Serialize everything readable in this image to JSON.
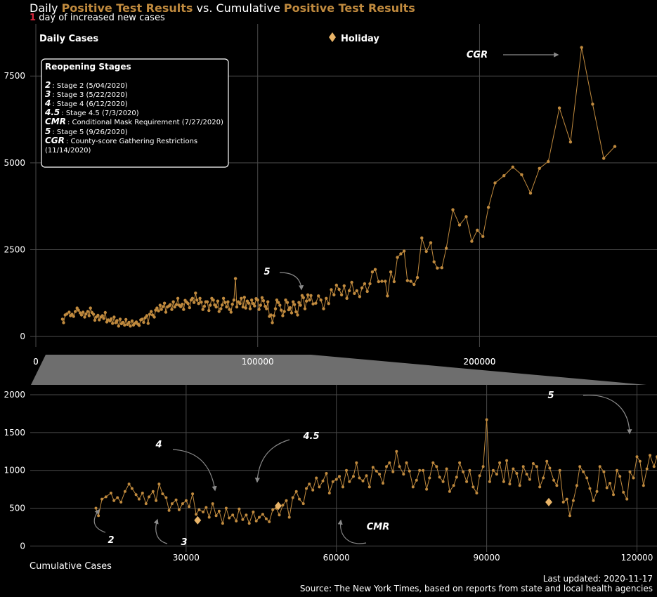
{
  "title": {
    "prefix": "Daily",
    "highlight1": "Positive Test Results",
    "middle": "vs. Cumulative",
    "highlight2": "Positive Test Results"
  },
  "subtitle": {
    "number": "1",
    "text": "day of increased new cases"
  },
  "x_caption": "Cumulative Cases",
  "footer": {
    "updated": "Last updated: 2020-11-17",
    "source": "Source: The New York Times, based on reports from state and local health agencies"
  },
  "colors": {
    "line": "#c08a3e",
    "highlight": "#c08a3e",
    "alert": "#d7263d",
    "holiday": "#e9b468",
    "grid": "#4a4a4a",
    "zoom_band": "#6e6e6e"
  },
  "legend": {
    "daily_cases": "Daily Cases",
    "holiday": "Holiday",
    "holiday_icon": "diamond-icon"
  },
  "stages_box": {
    "title": "Reopening Stages",
    "items": [
      {
        "code": "2",
        "text": ": Stage 2 (5/04/2020)"
      },
      {
        "code": "3",
        "text": ": Stage 3 (5/22/2020)"
      },
      {
        "code": "4",
        "text": ": Stage 4 (6/12/2020)"
      },
      {
        "code": "4.5",
        "text": ": Stage 4.5 (7/3/2020)"
      },
      {
        "code": "CMR",
        "text": ": Conditional Mask Requirement (7/27/2020)"
      },
      {
        "code": "5",
        "text": ": Stage 5 (9/26/2020)"
      },
      {
        "code": "CGR",
        "text": ": County-score Gathering Restrictions"
      },
      {
        "code": "",
        "text": "(11/14/2020)"
      }
    ]
  },
  "chart_data": [
    {
      "type": "line",
      "panel": "overview",
      "xlabel": "",
      "ylabel": "",
      "xlim": [
        0,
        280000
      ],
      "ylim": [
        -300,
        9000
      ],
      "x_ticks": [
        0,
        100000,
        200000
      ],
      "x_tick_labels": [
        "0",
        "100000",
        "200000"
      ],
      "y_ticks": [
        0,
        2500,
        5000,
        7500
      ],
      "y_tick_labels": [
        "0",
        "2500",
        "5000",
        "7500"
      ],
      "grid": true,
      "zoom_range": [
        0,
        124000
      ],
      "annotations": [
        {
          "label": "5",
          "x": 107000,
          "y": 1700
        },
        {
          "label": "CGR",
          "x": 208000,
          "y": 8400
        }
      ],
      "points": [
        [
          12000,
          500
        ],
        [
          12500,
          400
        ],
        [
          13200,
          620
        ],
        [
          14000,
          650
        ],
        [
          15000,
          700
        ],
        [
          15600,
          600
        ],
        [
          16300,
          640
        ],
        [
          17000,
          580
        ],
        [
          17800,
          720
        ],
        [
          18600,
          820
        ],
        [
          19200,
          760
        ],
        [
          20000,
          680
        ],
        [
          20600,
          620
        ],
        [
          21300,
          700
        ],
        [
          22000,
          560
        ],
        [
          22600,
          650
        ],
        [
          23400,
          720
        ],
        [
          24000,
          600
        ],
        [
          24600,
          820
        ],
        [
          25300,
          690
        ],
        [
          26000,
          640
        ],
        [
          26600,
          470
        ],
        [
          27200,
          560
        ],
        [
          28000,
          610
        ],
        [
          28600,
          480
        ],
        [
          29300,
          560
        ],
        [
          30000,
          600
        ],
        [
          30600,
          520
        ],
        [
          31300,
          690
        ],
        [
          32000,
          420
        ],
        [
          32600,
          480
        ],
        [
          33400,
          450
        ],
        [
          34000,
          510
        ],
        [
          34600,
          380
        ],
        [
          35300,
          560
        ],
        [
          36000,
          400
        ],
        [
          36600,
          460
        ],
        [
          37300,
          300
        ],
        [
          38000,
          500
        ],
        [
          38600,
          370
        ],
        [
          39300,
          410
        ],
        [
          40000,
          330
        ],
        [
          40600,
          490
        ],
        [
          41300,
          350
        ],
        [
          42000,
          410
        ],
        [
          42600,
          300
        ],
        [
          43400,
          450
        ],
        [
          44000,
          330
        ],
        [
          44600,
          380
        ],
        [
          45300,
          420
        ],
        [
          46000,
          360
        ],
        [
          46600,
          320
        ],
        [
          47300,
          480
        ],
        [
          48000,
          500
        ],
        [
          48600,
          410
        ],
        [
          49300,
          540
        ],
        [
          50000,
          600
        ],
        [
          50600,
          380
        ],
        [
          51300,
          640
        ],
        [
          52000,
          720
        ],
        [
          52600,
          620
        ],
        [
          53400,
          560
        ],
        [
          54000,
          760
        ],
        [
          54600,
          820
        ],
        [
          55300,
          740
        ],
        [
          56000,
          900
        ],
        [
          56600,
          780
        ],
        [
          57300,
          860
        ],
        [
          58000,
          960
        ],
        [
          58600,
          700
        ],
        [
          59300,
          850
        ],
        [
          60000,
          880
        ],
        [
          60600,
          920
        ],
        [
          61300,
          780
        ],
        [
          62000,
          1000
        ],
        [
          62600,
          850
        ],
        [
          63400,
          920
        ],
        [
          64000,
          1100
        ],
        [
          64600,
          900
        ],
        [
          65300,
          860
        ],
        [
          66000,
          930
        ],
        [
          66600,
          780
        ],
        [
          67300,
          1040
        ],
        [
          68000,
          990
        ],
        [
          68600,
          950
        ],
        [
          69300,
          830
        ],
        [
          70000,
          1050
        ],
        [
          70600,
          1100
        ],
        [
          71300,
          980
        ],
        [
          72000,
          1250
        ],
        [
          72600,
          1050
        ],
        [
          73400,
          950
        ],
        [
          74000,
          1100
        ],
        [
          74600,
          990
        ],
        [
          75300,
          780
        ],
        [
          76000,
          870
        ],
        [
          76600,
          1000
        ],
        [
          77300,
          1000
        ],
        [
          78000,
          750
        ],
        [
          78600,
          900
        ],
        [
          79300,
          1100
        ],
        [
          80000,
          1050
        ],
        [
          80600,
          910
        ],
        [
          81300,
          850
        ],
        [
          82000,
          1020
        ],
        [
          82600,
          720
        ],
        [
          83400,
          800
        ],
        [
          84000,
          910
        ],
        [
          84600,
          1100
        ],
        [
          85300,
          980
        ],
        [
          86000,
          850
        ],
        [
          86600,
          1000
        ],
        [
          87300,
          780
        ],
        [
          88000,
          700
        ],
        [
          88600,
          930
        ],
        [
          89300,
          1050
        ],
        [
          90000,
          1670
        ],
        [
          90600,
          850
        ],
        [
          91300,
          1000
        ],
        [
          92000,
          950
        ],
        [
          92600,
          1100
        ],
        [
          93400,
          850
        ],
        [
          94000,
          1130
        ],
        [
          94600,
          820
        ],
        [
          95300,
          1020
        ],
        [
          96000,
          960
        ],
        [
          96600,
          800
        ],
        [
          97300,
          1050
        ],
        [
          98000,
          950
        ],
        [
          98600,
          880
        ],
        [
          99300,
          1090
        ],
        [
          100000,
          1050
        ],
        [
          100600,
          780
        ],
        [
          101300,
          900
        ],
        [
          102000,
          1120
        ],
        [
          102600,
          1030
        ],
        [
          103400,
          870
        ],
        [
          104000,
          800
        ],
        [
          104600,
          1000
        ],
        [
          105300,
          580
        ],
        [
          106000,
          620
        ],
        [
          106600,
          400
        ],
        [
          107300,
          600
        ],
        [
          108000,
          800
        ],
        [
          108600,
          1050
        ],
        [
          109300,
          980
        ],
        [
          110000,
          900
        ],
        [
          110600,
          760
        ],
        [
          111300,
          600
        ],
        [
          112000,
          720
        ],
        [
          112600,
          1050
        ],
        [
          113400,
          980
        ],
        [
          114000,
          770
        ],
        [
          114600,
          830
        ],
        [
          115300,
          680
        ],
        [
          116000,
          1000
        ],
        [
          116600,
          920
        ],
        [
          117300,
          710
        ],
        [
          118000,
          620
        ],
        [
          118600,
          980
        ],
        [
          119300,
          900
        ],
        [
          120000,
          1180
        ],
        [
          120600,
          1120
        ],
        [
          121300,
          800
        ],
        [
          122000,
          1020
        ],
        [
          122600,
          1200
        ],
        [
          123400,
          1050
        ],
        [
          124000,
          1180
        ],
        [
          125000,
          940
        ],
        [
          126200,
          960
        ],
        [
          127400,
          1170
        ],
        [
          128500,
          1050
        ],
        [
          129700,
          800
        ],
        [
          130900,
          1100
        ],
        [
          132000,
          950
        ],
        [
          133200,
          1350
        ],
        [
          134400,
          1200
        ],
        [
          135500,
          1480
        ],
        [
          136700,
          1360
        ],
        [
          137800,
          1200
        ],
        [
          139000,
          1460
        ],
        [
          140200,
          1100
        ],
        [
          141300,
          1320
        ],
        [
          142400,
          1560
        ],
        [
          143600,
          1240
        ],
        [
          144700,
          1320
        ],
        [
          146000,
          1150
        ],
        [
          147000,
          1400
        ],
        [
          148200,
          1520
        ],
        [
          149400,
          1300
        ],
        [
          150600,
          1520
        ],
        [
          151700,
          1860
        ],
        [
          153000,
          1930
        ],
        [
          154500,
          1580
        ],
        [
          156000,
          1590
        ],
        [
          157500,
          1590
        ],
        [
          158500,
          1170
        ],
        [
          160000,
          1860
        ],
        [
          161500,
          1580
        ],
        [
          163000,
          2280
        ],
        [
          164500,
          2380
        ],
        [
          166000,
          2460
        ],
        [
          167500,
          1610
        ],
        [
          169000,
          1590
        ],
        [
          170500,
          1500
        ],
        [
          172000,
          1700
        ],
        [
          174000,
          2840
        ],
        [
          176000,
          2450
        ],
        [
          178000,
          2700
        ],
        [
          179500,
          2150
        ],
        [
          181000,
          1970
        ],
        [
          183000,
          1980
        ],
        [
          185000,
          2540
        ],
        [
          188000,
          3650
        ],
        [
          191000,
          3210
        ],
        [
          194000,
          3450
        ],
        [
          196500,
          2740
        ],
        [
          199000,
          3060
        ],
        [
          201500,
          2880
        ],
        [
          204000,
          3720
        ],
        [
          207000,
          4420
        ],
        [
          211000,
          4630
        ],
        [
          215000,
          4880
        ],
        [
          219000,
          4660
        ],
        [
          223000,
          4130
        ],
        [
          227000,
          4840
        ],
        [
          231000,
          5040
        ],
        [
          236000,
          6580
        ],
        [
          241000,
          5600
        ],
        [
          246000,
          8320
        ],
        [
          251000,
          6690
        ],
        [
          256000,
          5130
        ],
        [
          261000,
          5470
        ]
      ]
    },
    {
      "type": "line",
      "panel": "zoom",
      "xlabel": "Cumulative Cases",
      "ylabel": "",
      "xlim": [
        0,
        124000
      ],
      "ylim": [
        -80,
        2130
      ],
      "x_ticks": [
        30000,
        60000,
        90000,
        120000
      ],
      "x_tick_labels": [
        "30000",
        "60000",
        "90000",
        "120000"
      ],
      "y_ticks": [
        0,
        500,
        1000,
        1500,
        2000
      ],
      "y_tick_labels": [
        "0",
        "500",
        "1000",
        "1500",
        "2000"
      ],
      "grid": true,
      "holidays": [
        [
          32300,
          340
        ],
        [
          48400,
          530
        ],
        [
          102400,
          580
        ]
      ],
      "annotations": [
        {
          "label": "2",
          "x": 16500,
          "y": 40
        },
        {
          "label": "3",
          "x": 29500,
          "y": 20
        },
        {
          "label": "4",
          "x": 10000,
          "y": 1310
        },
        {
          "label": "4.5",
          "x": 44500,
          "y": 1430
        },
        {
          "label": "CMR",
          "x": 67000,
          "y": 215
        },
        {
          "label": "5",
          "x": 104500,
          "y": 1990
        }
      ]
    }
  ]
}
